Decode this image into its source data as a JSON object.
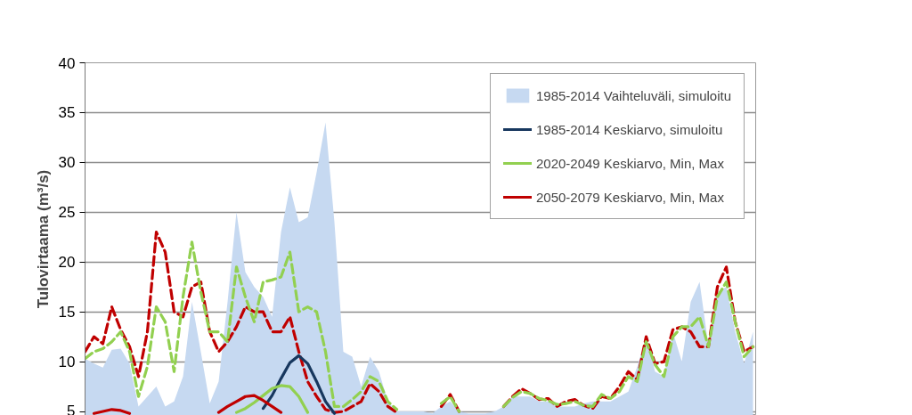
{
  "chart_data": {
    "type": "line",
    "ylabel": "Tulovirtaama (m³/s)",
    "categories": [
      null,
      null,
      null,
      null,
      null,
      null,
      null,
      null,
      null,
      null,
      null,
      null,
      null,
      null,
      null,
      null,
      null,
      null,
      null,
      null,
      null,
      null,
      null,
      null,
      null,
      null,
      null,
      null,
      null,
      null,
      null,
      null,
      null,
      null,
      null,
      null,
      null,
      null,
      null,
      null,
      null,
      null,
      null,
      null,
      null,
      null,
      null,
      null,
      null,
      null,
      null,
      null,
      null,
      null,
      null,
      null,
      null,
      null,
      null,
      null,
      null,
      null,
      null,
      null,
      null,
      null,
      null,
      null,
      null,
      null,
      null,
      null,
      null,
      null,
      null,
      null
    ],
    "ylim": [
      4.6,
      40
    ],
    "yticks": [
      5,
      10,
      15,
      20,
      25,
      30,
      35,
      40
    ],
    "grid": "y",
    "legend": "top right",
    "tick_labels": "y",
    "series": [
      {
        "name": "1985-2014 Vaihteluväli, simuloitu",
        "type": "area",
        "color": "#c6d9f1",
        "values": [
          10.3,
          9.8,
          9.4,
          11.2,
          11.3,
          9.8,
          5.5,
          6.5,
          7.5,
          5.5,
          6,
          8.5,
          16,
          11,
          5.8,
          8,
          16,
          25,
          19,
          17.5,
          16.5,
          14.5,
          23,
          27.5,
          24,
          24.5,
          29,
          34,
          24,
          11,
          10.5,
          7.5,
          10.5,
          9,
          6,
          5,
          5,
          5,
          5,
          4.8,
          5.5,
          6,
          5,
          4.8,
          4.8,
          4.8,
          5,
          5.5,
          6.5,
          6.5,
          6.5,
          6,
          6,
          5.5,
          5.5,
          5.5,
          5.8,
          6,
          6,
          6,
          6.5,
          7,
          9.5,
          12.5,
          9,
          8.5,
          13,
          10,
          16,
          18,
          11.5,
          17,
          17.5,
          13,
          9.8,
          13
        ]
      },
      {
        "color": "#c00000",
        "line_style": "dashed",
        "values": [
          11,
          12.5,
          11.8,
          15.5,
          13.2,
          11.5,
          8.5,
          13,
          23,
          21,
          15,
          14.5,
          17.5,
          18,
          13,
          11,
          12,
          13.5,
          15.5,
          15,
          15,
          13,
          13,
          14.5,
          11,
          8,
          6.5,
          5.2,
          4.9,
          5,
          5.5,
          6,
          7.8,
          7,
          5.5,
          4.9,
          null,
          null,
          null,
          null,
          5.5,
          6.7,
          5,
          null,
          null,
          null,
          null,
          5.5,
          6.5,
          7.3,
          6.8,
          6.2,
          6.3,
          5.5,
          6,
          6.2,
          5.6,
          5.3,
          6.5,
          6.3,
          7.5,
          9,
          8.2,
          12.5,
          9.8,
          10,
          13.2,
          13.5,
          13,
          11.5,
          11.5,
          17.5,
          19.5,
          14,
          11,
          11.5
        ]
      },
      {
        "color": "#92d050",
        "line_style": "dashed",
        "values": [
          10.3,
          11,
          11.3,
          12,
          13,
          11,
          6.5,
          9.5,
          15.5,
          14,
          9,
          16.5,
          22,
          17,
          13,
          13,
          12,
          19.5,
          16.5,
          14,
          18,
          18.2,
          18.5,
          21,
          15,
          15.5,
          15,
          11,
          5.5,
          5.5,
          6.2,
          7,
          8.5,
          8,
          6,
          5.2,
          null,
          null,
          null,
          null,
          5.8,
          6.5,
          5,
          null,
          null,
          null,
          null,
          5.5,
          6.4,
          7,
          6.8,
          6.3,
          6.1,
          5.7,
          5.8,
          6,
          5.6,
          5.5,
          6.7,
          6.3,
          7,
          8.5,
          8,
          12,
          9.7,
          8.5,
          12.5,
          13.5,
          13.5,
          14.5,
          11.5,
          16.5,
          18,
          14,
          10.5,
          11.5
        ]
      },
      {
        "name": "1985-2014 Keskiarvo, simuloitu",
        "color": "#17375e",
        "values": [
          null,
          null,
          null,
          null,
          null,
          null,
          null,
          null,
          null,
          null,
          null,
          null,
          null,
          null,
          null,
          null,
          null,
          null,
          null,
          null,
          5.3,
          6.6,
          8.3,
          9.9,
          10.6,
          9.8,
          8,
          6,
          4.8,
          null,
          null,
          null,
          null,
          null,
          null,
          null,
          null,
          null,
          null,
          null,
          null,
          null,
          null,
          null,
          null,
          null,
          null,
          null,
          null,
          null,
          null,
          null,
          null,
          null,
          null,
          null,
          null,
          null,
          null,
          null,
          null,
          null,
          null,
          null,
          null,
          null,
          null,
          null,
          null,
          null,
          null,
          null,
          null,
          null,
          null,
          null
        ]
      },
      {
        "name": "2020-2049 Keskiarvo, Min, Max",
        "color": "#92d050",
        "values": [
          null,
          null,
          null,
          null,
          null,
          null,
          null,
          null,
          null,
          null,
          null,
          null,
          null,
          null,
          null,
          null,
          null,
          4.9,
          5.3,
          5.9,
          6.6,
          7.3,
          7.6,
          7.5,
          6.5,
          4.9,
          null,
          null,
          null,
          null,
          null,
          null,
          null,
          null,
          null,
          null,
          null,
          null,
          null,
          null,
          null,
          null,
          null,
          null,
          null,
          null,
          null,
          null,
          null,
          null,
          null,
          null,
          null,
          null,
          null,
          null,
          null,
          null,
          null,
          null,
          null,
          null,
          null,
          null,
          null,
          null,
          null,
          null,
          null,
          null,
          null,
          null,
          null,
          null,
          null,
          null
        ]
      },
      {
        "name": "2050-2079 Keskiarvo, Min, Max",
        "color": "#c00000",
        "values": [
          null,
          4.8,
          5,
          5.2,
          5.1,
          4.8,
          null,
          null,
          null,
          null,
          null,
          null,
          null,
          null,
          null,
          4.9,
          5.5,
          6,
          6.5,
          6.6,
          6.1,
          5.5,
          4.9,
          null,
          null,
          null,
          null,
          null,
          null,
          null,
          null,
          null,
          null,
          null,
          null,
          null,
          null,
          null,
          null,
          null,
          null,
          null,
          null,
          null,
          null,
          null,
          null,
          null,
          null,
          null,
          null,
          null,
          null,
          null,
          null,
          null,
          null,
          null,
          null,
          null,
          null,
          null,
          null,
          null,
          null,
          null,
          null,
          null,
          null,
          null,
          null,
          null,
          null,
          null,
          null,
          null
        ]
      }
    ]
  }
}
